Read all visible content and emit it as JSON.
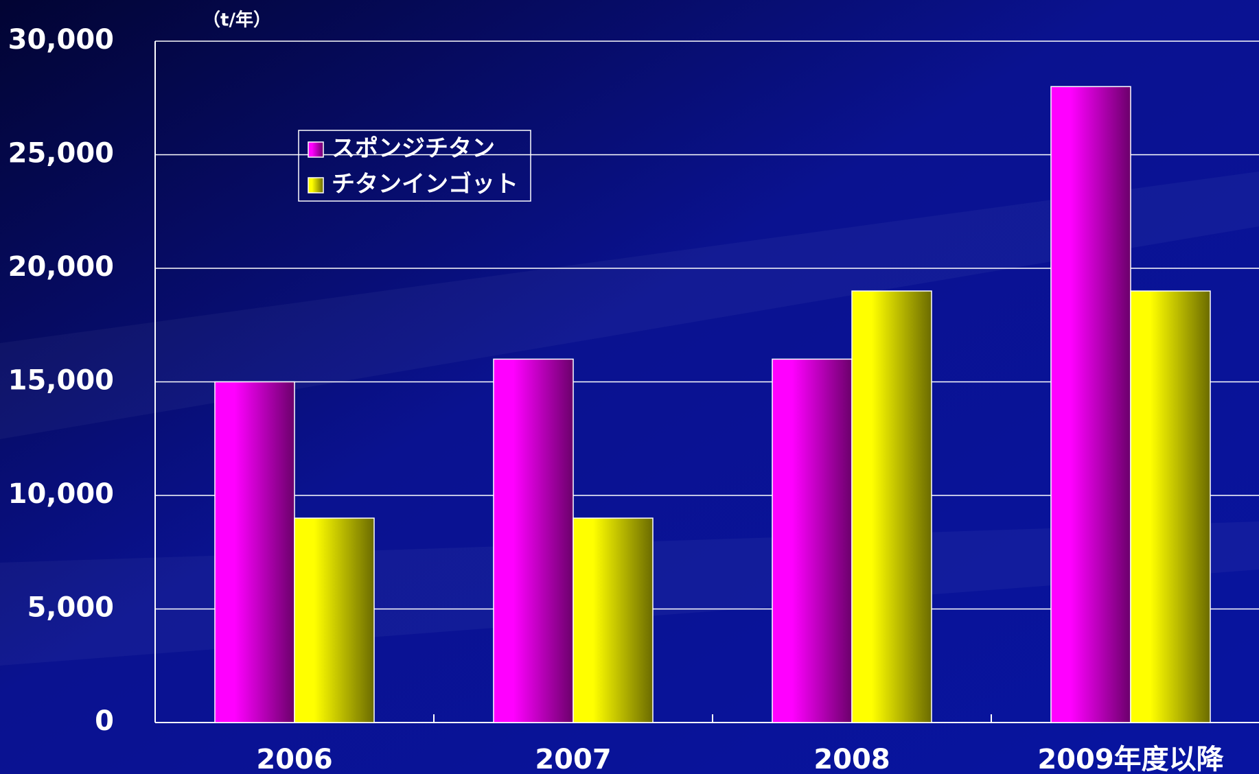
{
  "chart_data": {
    "type": "bar",
    "unit_label": "（t/年）",
    "categories": [
      "2006",
      "2007",
      "2008",
      "2009年度以降"
    ],
    "series": [
      {
        "name": "スポンジチタン",
        "color": "#ff00ff",
        "values": [
          15000,
          16000,
          16000,
          28000
        ]
      },
      {
        "name": "チタンインゴット",
        "color": "#ffff00",
        "values": [
          9000,
          9000,
          19000,
          19000
        ]
      }
    ],
    "ylim": [
      0,
      30000
    ],
    "yticks": [
      0,
      {
        "value": 5000,
        "label": "5,000"
      },
      {
        "value": 10000,
        "label": "10,000"
      },
      {
        "value": 15000,
        "label": "15,000"
      },
      {
        "value": 20000,
        "label": "20,000"
      },
      {
        "value": 25000,
        "label": "25,000"
      },
      {
        "value": 30000,
        "label": "30,000"
      }
    ],
    "grid": true,
    "legend": "upper left"
  }
}
